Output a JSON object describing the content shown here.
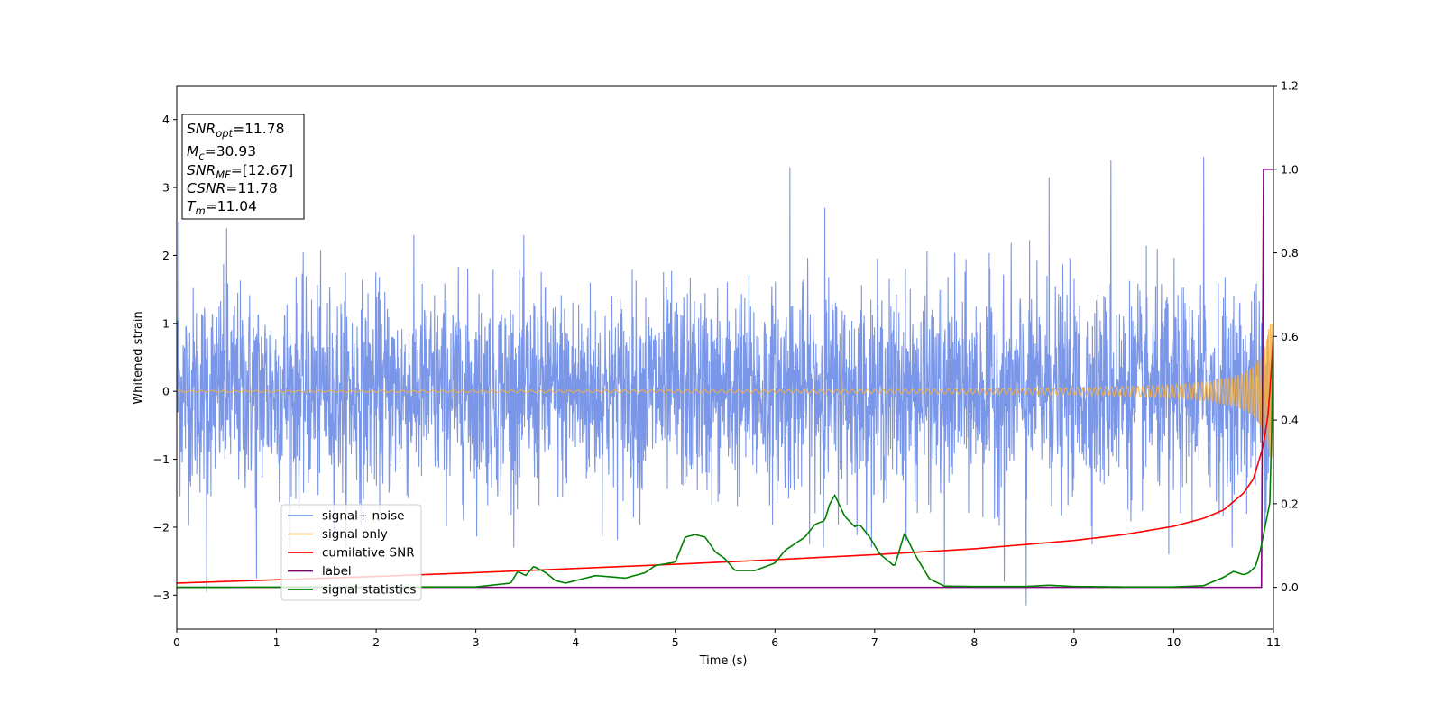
{
  "chart_data": {
    "type": "line",
    "title": "",
    "xlabel": "Time (s)",
    "ylabel": "Whitened strain",
    "y2label": "",
    "xlim": [
      0,
      11
    ],
    "ylim": [
      -3.5,
      4.5
    ],
    "y2lim": [
      -0.1,
      1.2
    ],
    "xticks": [
      "0",
      "1",
      "2",
      "3",
      "4",
      "5",
      "6",
      "7",
      "8",
      "9",
      "10",
      "11"
    ],
    "yticks": [
      "−3",
      "−2",
      "−1",
      "0",
      "1",
      "2",
      "3",
      "4"
    ],
    "y2ticks": [
      "0.0",
      "0.2",
      "0.4",
      "0.6",
      "0.8",
      "1.0",
      "1.2"
    ],
    "grid": false,
    "legend_position": "lower-left",
    "annotation": [
      {
        "main": "SNR",
        "sub": "opt",
        "value": "=11.78"
      },
      {
        "main": "M",
        "sub": "c",
        "value": "=30.93"
      },
      {
        "main": "SNR",
        "sub": "MF",
        "value": "=[12.67]"
      },
      {
        "main": "CSNR",
        "sub": "",
        "value": "=11.78"
      },
      {
        "main": "T",
        "sub": "m",
        "value": "=11.04"
      }
    ],
    "series": [
      {
        "name": "signal+ noise",
        "axis": "left",
        "color": "#7a96e8",
        "kind": "noise",
        "noise_std": 0.75,
        "peaks": [
          [
            0.02,
            2.5
          ],
          [
            0.3,
            -2.95
          ],
          [
            0.5,
            2.4
          ],
          [
            0.8,
            -2.75
          ],
          [
            6.15,
            3.3
          ],
          [
            6.5,
            2.7
          ],
          [
            7.7,
            -2.85
          ],
          [
            8.3,
            -2.8
          ],
          [
            8.52,
            -3.15
          ],
          [
            8.75,
            3.15
          ],
          [
            9.37,
            3.4
          ],
          [
            9.95,
            -2.4
          ],
          [
            10.3,
            3.45
          ],
          [
            10.9,
            2.2
          ],
          [
            11.0,
            -2.7
          ]
        ]
      },
      {
        "name": "signal only",
        "axis": "left",
        "color": "#f5b041",
        "kind": "chirp"
      },
      {
        "name": "cumilative SNR",
        "axis": "right",
        "color": "#ff0000",
        "kind": "curve",
        "x": [
          0,
          1,
          2,
          3,
          4,
          5,
          6,
          7,
          8,
          9,
          9.5,
          10,
          10.3,
          10.5,
          10.7,
          10.8,
          10.9,
          10.95,
          11.0
        ],
        "y": [
          0.01,
          0.018,
          0.026,
          0.035,
          0.045,
          0.055,
          0.066,
          0.078,
          0.092,
          0.112,
          0.126,
          0.146,
          0.165,
          0.185,
          0.225,
          0.26,
          0.34,
          0.42,
          0.6
        ]
      },
      {
        "name": "label",
        "axis": "right",
        "color": "#800080",
        "kind": "step",
        "x": [
          0,
          10.88,
          10.9,
          11.0
        ],
        "y": [
          0,
          0,
          1.0,
          1.0
        ]
      },
      {
        "name": "signal statistics",
        "axis": "right",
        "color": "#008000",
        "kind": "curve",
        "x": [
          0,
          2.5,
          3.0,
          3.35,
          3.42,
          3.5,
          3.58,
          3.7,
          3.8,
          3.9,
          4.0,
          4.2,
          4.5,
          4.7,
          4.8,
          5.0,
          5.1,
          5.2,
          5.3,
          5.4,
          5.5,
          5.6,
          5.8,
          6.0,
          6.1,
          6.3,
          6.4,
          6.5,
          6.55,
          6.6,
          6.7,
          6.8,
          6.85,
          6.95,
          7.05,
          7.2,
          7.3,
          7.4,
          7.55,
          7.7,
          8.0,
          8.5,
          8.75,
          9.0,
          9.5,
          10.0,
          10.3,
          10.5,
          10.6,
          10.7,
          10.75,
          10.82,
          10.87,
          10.92,
          10.97,
          11.0
        ],
        "y": [
          0.0,
          0.001,
          0.001,
          0.01,
          0.038,
          0.028,
          0.05,
          0.035,
          0.016,
          0.01,
          0.016,
          0.028,
          0.022,
          0.035,
          0.052,
          0.06,
          0.12,
          0.126,
          0.12,
          0.085,
          0.068,
          0.04,
          0.04,
          0.058,
          0.088,
          0.12,
          0.15,
          0.16,
          0.2,
          0.22,
          0.17,
          0.145,
          0.15,
          0.12,
          0.08,
          0.05,
          0.13,
          0.08,
          0.02,
          0.003,
          0.002,
          0.002,
          0.005,
          0.002,
          0.001,
          0.001,
          0.004,
          0.024,
          0.038,
          0.03,
          0.034,
          0.05,
          0.09,
          0.15,
          0.21,
          0.62
        ]
      }
    ]
  }
}
